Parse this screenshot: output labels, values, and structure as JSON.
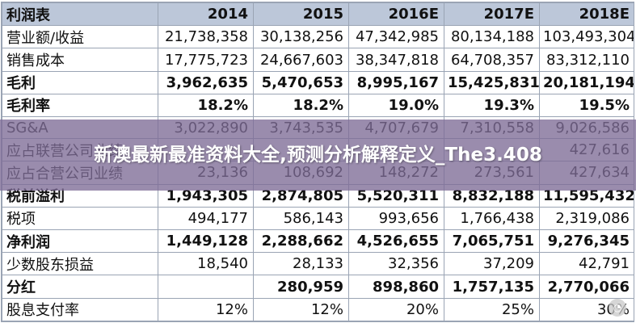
{
  "table": {
    "header": [
      "利润表",
      "2014",
      "2015",
      "2016E",
      "2017E",
      "2018E"
    ],
    "rows": [
      {
        "label": "营业额/收益",
        "bold": false,
        "values": [
          "21,738,358",
          "30,138,256",
          "47,342,985",
          "80,134,188",
          "103,493,304"
        ]
      },
      {
        "label": "销售成本",
        "bold": false,
        "values": [
          "17,775,723",
          "24,667,603",
          "38,347,818",
          "64,708,357",
          "83,312,110"
        ]
      },
      {
        "label": "毛利",
        "bold": true,
        "values": [
          "3,962,635",
          "5,470,653",
          "8,995,167",
          "15,425,831",
          "20,181,194"
        ]
      },
      {
        "label": "毛利率",
        "bold": true,
        "values": [
          "18.2%",
          "18.2%",
          "19.0%",
          "19.3%",
          "19.5%"
        ]
      },
      {
        "label": "SG&A",
        "bold": false,
        "values": [
          "3,022,890",
          "3,743,535",
          "4,707,679",
          "7,310,558",
          "9,026,586"
        ]
      },
      {
        "label": "应占联营公司业绩",
        "bold": false,
        "values": [
          "",
          "",
          "",
          "",
          "427,616"
        ]
      },
      {
        "label": "应占合营公司业绩",
        "bold": false,
        "values": [
          "23,136",
          "108,692",
          "148,272",
          "273,561",
          "427,634"
        ]
      },
      {
        "label": "税前溢利",
        "bold": true,
        "values": [
          "1,943,305",
          "2,874,805",
          "5,520,311",
          "8,832,188",
          "11,595,432"
        ]
      },
      {
        "label": "税项",
        "bold": false,
        "values": [
          "494,177",
          "586,143",
          "993,656",
          "1,766,438",
          "2,319,086"
        ]
      },
      {
        "label": "净利润",
        "bold": true,
        "values": [
          "1,449,128",
          "2,288,662",
          "4,526,655",
          "7,065,751",
          "9,276,345"
        ]
      },
      {
        "label": "少数股东损益",
        "bold": false,
        "values": [
          "18,540",
          "28,133",
          "32,356",
          "37,209",
          "42,791"
        ]
      },
      {
        "label": "分红",
        "bold": true,
        "values": [
          "",
          "280,959",
          "898,860",
          "1,757,135",
          "2,770,066"
        ]
      },
      {
        "label": "股息支付率",
        "bold": false,
        "values": [
          "12%",
          "12%",
          "20%",
          "25%",
          "30%"
        ]
      }
    ]
  },
  "overlay": {
    "title": "新澳最新最准资料大全,预测分析解释定义_The3.408"
  },
  "watermark": {
    "icon": "watermark-logo-icon"
  }
}
